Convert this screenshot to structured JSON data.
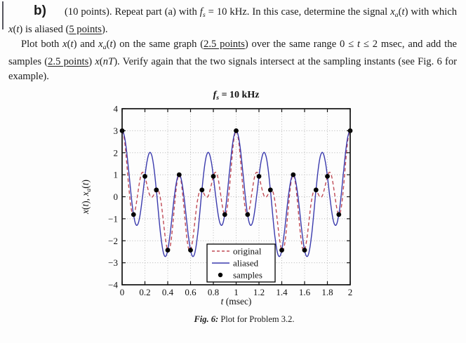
{
  "problem": {
    "part_label": "b)",
    "para1": [
      {
        "t": "(10 points).  Repeat part (a) with "
      },
      {
        "t": "f",
        "i": true
      },
      {
        "t": "s",
        "i": true,
        "sub": true
      },
      {
        "t": " = 10 kHz.  In this case, determine the signal "
      },
      {
        "t": "x",
        "i": true
      },
      {
        "t": "a",
        "i": true,
        "sub": true
      },
      {
        "t": "("
      },
      {
        "t": "t",
        "i": true
      },
      {
        "t": ")"
      },
      {
        "t": " with which "
      },
      {
        "t": "x",
        "i": true
      },
      {
        "t": "("
      },
      {
        "t": "t",
        "i": true
      },
      {
        "t": ")"
      },
      {
        "t": " is aliased ("
      },
      {
        "t": "5 points",
        "u": true
      },
      {
        "t": ")."
      }
    ],
    "para2": [
      {
        "t": "Plot both "
      },
      {
        "t": "x",
        "i": true
      },
      {
        "t": "("
      },
      {
        "t": "t",
        "i": true
      },
      {
        "t": ") and "
      },
      {
        "t": "x",
        "i": true
      },
      {
        "t": "a",
        "i": true,
        "sub": true
      },
      {
        "t": "("
      },
      {
        "t": "t",
        "i": true
      },
      {
        "t": ") on the same graph ("
      },
      {
        "t": "2.5 points",
        "u": true
      },
      {
        "t": ") over the same range 0 ≤ "
      },
      {
        "t": "t",
        "i": true
      },
      {
        "t": " ≤ 2 msec, and add the samples ("
      },
      {
        "t": "2.5 points",
        "u": true
      },
      {
        "t": ") "
      },
      {
        "t": "x",
        "i": true
      },
      {
        "t": "("
      },
      {
        "t": "n",
        "i": true
      },
      {
        "t": "T",
        "i": true
      },
      {
        "t": ").  Verify again that the two signals intersect at the sampling instants (see Fig. 6 for example)."
      }
    ]
  },
  "figure": {
    "caption_prefix": "Fig. 6:",
    "caption_text": "Plot for Problem 3.2."
  },
  "chart_data": {
    "type": "line",
    "title_text": "f_s = 10 kHz",
    "title_segments": [
      {
        "t": "f",
        "i": true
      },
      {
        "t": "s",
        "i": true,
        "sub": true
      },
      {
        "t": " = 10 kHz"
      }
    ],
    "xlabel_segments": [
      {
        "t": "t",
        "i": true
      },
      {
        "t": "  (msec)"
      }
    ],
    "ylabel_segments": [
      {
        "t": "x",
        "i": true
      },
      {
        "t": "("
      },
      {
        "t": "t",
        "i": true
      },
      {
        "t": "),  "
      },
      {
        "t": "x",
        "i": true
      },
      {
        "t": "a",
        "i": true,
        "sub": true
      },
      {
        "t": "("
      },
      {
        "t": "t",
        "i": true
      },
      {
        "t": ")"
      }
    ],
    "xlim": [
      0,
      2
    ],
    "ylim": [
      -4,
      4
    ],
    "xticks": [
      0,
      0.2,
      0.4,
      0.6,
      0.8,
      1,
      1.2,
      1.4,
      1.6,
      1.8,
      2
    ],
    "xtick_labels": [
      "0",
      "0.2",
      "0.4",
      "0.6",
      "0.8",
      "1",
      "1.2",
      "1.4",
      "1.6",
      "1.8",
      "2"
    ],
    "yticks": [
      4,
      3,
      2,
      1,
      0,
      -1,
      -2,
      -3,
      -4
    ],
    "ytick_labels": [
      "4",
      "3",
      "2",
      "1",
      "0",
      "−1",
      "−2",
      "−3",
      "−4"
    ],
    "grid": "dotted",
    "sampling": {
      "fs_khz": 10,
      "T_msec": 0.1
    },
    "series": [
      {
        "name": "original",
        "legend": "original",
        "style": "dashed",
        "color": "#c04a55",
        "formula": "cos(2*pi*t) + cos(8*pi*t) + cos(12*pi*t)",
        "components": [
          {
            "freq_khz": 1,
            "amp": 1
          },
          {
            "freq_khz": 4,
            "amp": 1
          },
          {
            "freq_khz": 6,
            "amp": 1
          }
        ]
      },
      {
        "name": "aliased",
        "legend": "aliased",
        "style": "solid",
        "color": "#3a3aad",
        "formula": "cos(2*pi*t) + 2*cos(8*pi*t)",
        "components": [
          {
            "freq_khz": 1,
            "amp": 1
          },
          {
            "freq_khz": 4,
            "amp": 2
          }
        ]
      },
      {
        "name": "samples",
        "legend": "samples",
        "style": "points",
        "color": "#000000",
        "x": [
          0,
          0.1,
          0.2,
          0.3,
          0.4,
          0.5,
          0.6,
          0.7,
          0.8,
          0.9,
          1,
          1.1,
          1.2,
          1.3,
          1.4,
          1.5,
          1.6,
          1.7,
          1.8,
          1.9,
          2
        ],
        "y": [
          3,
          -0.809,
          0.927,
          0.309,
          -2.427,
          1,
          -2.427,
          0.309,
          0.927,
          -0.809,
          3,
          -0.809,
          0.927,
          0.309,
          -2.427,
          1,
          -2.427,
          0.309,
          0.927,
          -0.809,
          3
        ]
      }
    ],
    "legend": {
      "position": "lower-center",
      "border": "#000000",
      "bg": "#ffffff"
    }
  }
}
